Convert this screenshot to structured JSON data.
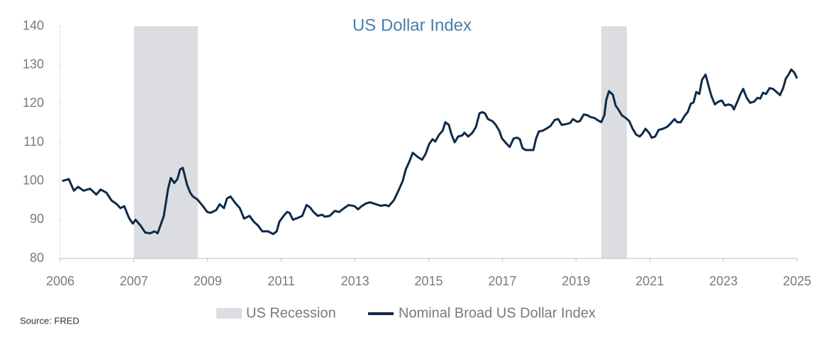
{
  "chart_data": {
    "type": "line",
    "title": "US Dollar Index",
    "source": "Source: FRED",
    "xlim": [
      2006,
      2025
    ],
    "ylim": [
      80,
      140
    ],
    "yticks": [
      80,
      90,
      100,
      110,
      120,
      130,
      140
    ],
    "xticks": [
      2006,
      {
        "value": 2007.9,
        "label": "2007"
      },
      {
        "value": 2009.8,
        "label": "2009"
      },
      {
        "value": 2011.7,
        "label": "2011"
      },
      {
        "value": 2013.6,
        "label": "2013"
      },
      {
        "value": 2015.5,
        "label": "2015"
      },
      {
        "value": 2017.4,
        "label": "2017"
      },
      {
        "value": 2019.3,
        "label": "2019"
      },
      {
        "value": 2021.2,
        "label": "2021"
      },
      {
        "value": 2023.1,
        "label": "2023"
      },
      2025
    ],
    "recessions": {
      "name": "US Recession",
      "color": "#dcdde0",
      "spans": [
        [
          2007.9,
          2009.55
        ],
        [
          2019.95,
          2020.61
        ]
      ]
    },
    "x": [
      2006.05,
      2006.22,
      2006.35,
      2006.46,
      2006.6,
      2006.77,
      2006.93,
      2007.04,
      2007.19,
      2007.32,
      2007.46,
      2007.55,
      2007.65,
      2007.77,
      2007.87,
      2007.94,
      2008.07,
      2008.19,
      2008.32,
      2008.43,
      2008.51,
      2008.67,
      2008.78,
      2008.85,
      2008.94,
      2009.02,
      2009.09,
      2009.16,
      2009.27,
      2009.35,
      2009.42,
      2009.53,
      2009.68,
      2009.79,
      2009.88,
      2010.02,
      2010.11,
      2010.22,
      2010.3,
      2010.39,
      2010.5,
      2010.63,
      2010.74,
      2010.88,
      2010.99,
      2011.1,
      2011.21,
      2011.36,
      2011.49,
      2011.58,
      2011.65,
      2011.76,
      2011.85,
      2011.91,
      2012.0,
      2012.13,
      2012.24,
      2012.35,
      2012.44,
      2012.53,
      2012.64,
      2012.75,
      2012.82,
      2012.95,
      2013.08,
      2013.19,
      2013.32,
      2013.44,
      2013.59,
      2013.68,
      2013.77,
      2013.88,
      2013.99,
      2014.14,
      2014.27,
      2014.38,
      2014.47,
      2014.6,
      2014.72,
      2014.83,
      2014.91,
      2015.0,
      2015.09,
      2015.22,
      2015.33,
      2015.42,
      2015.51,
      2015.6,
      2015.67,
      2015.77,
      2015.86,
      2015.93,
      2016.02,
      2016.09,
      2016.17,
      2016.26,
      2016.37,
      2016.42,
      2016.52,
      2016.63,
      2016.72,
      2016.81,
      2016.88,
      2016.95,
      2017.03,
      2017.14,
      2017.23,
      2017.32,
      2017.39,
      2017.52,
      2017.59,
      2017.69,
      2017.78,
      2017.85,
      2017.92,
      2018.0,
      2018.09,
      2018.2,
      2018.27,
      2018.34,
      2018.44,
      2018.53,
      2018.64,
      2018.75,
      2018.84,
      2018.93,
      2019.04,
      2019.15,
      2019.22,
      2019.33,
      2019.4,
      2019.5,
      2019.59,
      2019.68,
      2019.77,
      2019.86,
      2019.95,
      2020.03,
      2020.08,
      2020.15,
      2020.25,
      2020.32,
      2020.39,
      2020.48,
      2020.58,
      2020.67,
      2020.76,
      2020.85,
      2020.94,
      2021.01,
      2021.09,
      2021.18,
      2021.25,
      2021.34,
      2021.43,
      2021.54,
      2021.65,
      2021.75,
      2021.84,
      2021.91,
      2022.0,
      2022.11,
      2022.18,
      2022.26,
      2022.33,
      2022.4,
      2022.48,
      2022.55,
      2022.64,
      2022.72,
      2022.79,
      2022.88,
      2022.97,
      2023.06,
      2023.14,
      2023.23,
      2023.32,
      2023.37,
      2023.46,
      2023.54,
      2023.61,
      2023.7,
      2023.79,
      2023.89,
      2023.98,
      2024.05,
      2024.12,
      2024.2,
      2024.29,
      2024.38,
      2024.47,
      2024.56,
      2024.64,
      2024.71,
      2024.78,
      2024.85,
      2024.93,
      2025.0
    ],
    "series": [
      {
        "name": "Nominal Broad US Dollar Index",
        "color": "#0d2a47",
        "values": [
          100,
          100.5,
          97.5,
          98.5,
          97.5,
          98,
          96.5,
          97.8,
          97,
          95,
          94,
          93,
          93.5,
          90.5,
          89,
          90,
          88.5,
          86.7,
          86.5,
          87,
          86.5,
          91,
          98,
          100.8,
          99.5,
          100.5,
          103,
          103.4,
          99,
          97,
          96,
          95.3,
          93.5,
          92,
          91.8,
          92.5,
          94,
          93,
          95.5,
          96,
          94.5,
          93,
          90.3,
          91,
          89.5,
          88.5,
          87,
          87,
          86.3,
          87,
          89.5,
          91,
          92,
          91.8,
          90,
          90.5,
          91,
          93.8,
          93.2,
          92,
          91,
          91.3,
          90.8,
          91,
          92.3,
          92,
          93,
          93.8,
          93.5,
          92.7,
          93.5,
          94.2,
          94.5,
          94,
          93.6,
          93.8,
          93.5,
          95,
          97.5,
          100,
          103,
          105,
          107.3,
          106.2,
          105.5,
          107,
          109.5,
          110.8,
          110.2,
          112,
          113,
          115.2,
          114.5,
          112,
          110,
          111.5,
          111.8,
          112.5,
          111.5,
          112.5,
          114,
          117.5,
          117.8,
          117.5,
          116,
          115.5,
          114.5,
          113,
          111,
          109.5,
          108.8,
          111,
          111.2,
          110.8,
          108.5,
          108,
          108,
          108,
          111,
          112.8,
          113,
          113.5,
          114.2,
          115.8,
          116,
          114.5,
          114.7,
          115,
          116,
          115.3,
          115.5,
          117.2,
          117,
          116.5,
          116.3,
          115.7,
          115.2,
          117,
          121,
          123.2,
          122.3,
          119.5,
          118.5,
          117,
          116.3,
          115.5,
          113.5,
          112,
          111.5,
          112.2,
          113.5,
          112.5,
          111.2,
          111.5,
          113.2,
          113.5,
          114,
          115,
          116,
          115.2,
          115.2,
          117,
          117.8,
          120,
          120.3,
          123,
          122.5,
          126.2,
          127.5,
          124.5,
          122,
          119.8,
          120.5,
          120.8,
          119.5,
          119.8,
          119.5,
          118.5,
          120.5,
          122.5,
          123.8,
          121.5,
          120.2,
          120.5,
          121.5,
          121.3,
          122.8,
          122.5,
          124,
          123.8,
          123,
          122.2,
          124,
          126.5,
          127.5,
          128.8,
          128,
          126.5
        ]
      }
    ]
  }
}
